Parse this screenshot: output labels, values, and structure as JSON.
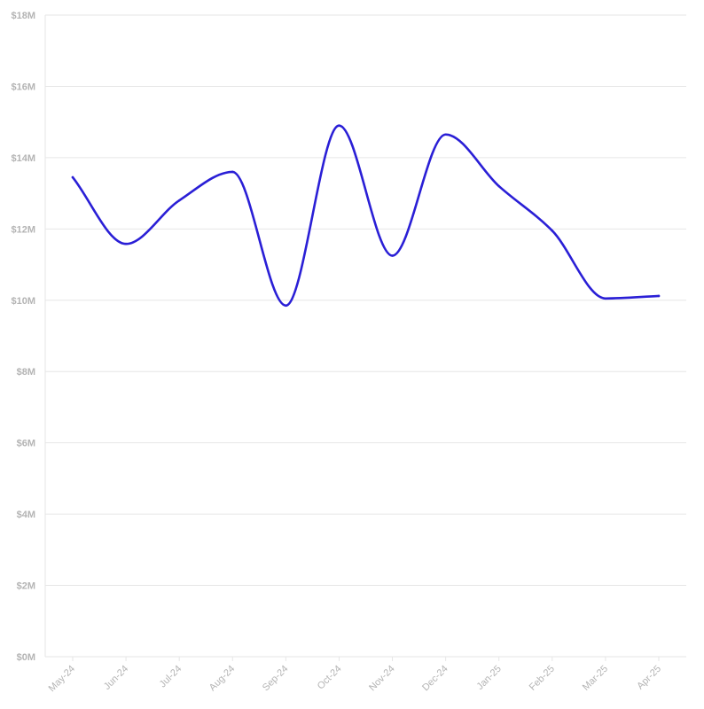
{
  "chart_data": {
    "type": "line",
    "title": "",
    "xlabel": "",
    "ylabel": "",
    "categories": [
      "May-24",
      "Jun-24",
      "Jul-24",
      "Aug-24",
      "Sep-24",
      "Oct-24",
      "Nov-24",
      "Dec-24",
      "Jan-25",
      "Feb-25",
      "Mar-25",
      "Apr-25"
    ],
    "series": [
      {
        "color": "#2a1fd6",
        "values": [
          13.45,
          11.58,
          12.8,
          13.6,
          9.85,
          14.9,
          11.25,
          14.65,
          13.2,
          11.95,
          10.05,
          10.12
        ]
      }
    ],
    "ylim": [
      0,
      18
    ],
    "yticks": [
      0,
      2,
      4,
      6,
      8,
      10,
      12,
      14,
      16,
      18
    ],
    "ytick_labels": [
      "$0M",
      "$2M",
      "$4M",
      "$6M",
      "$8M",
      "$10M",
      "$12M",
      "$14M",
      "$16M",
      "$18M"
    ],
    "grid": "horizontal",
    "legend": "none"
  }
}
